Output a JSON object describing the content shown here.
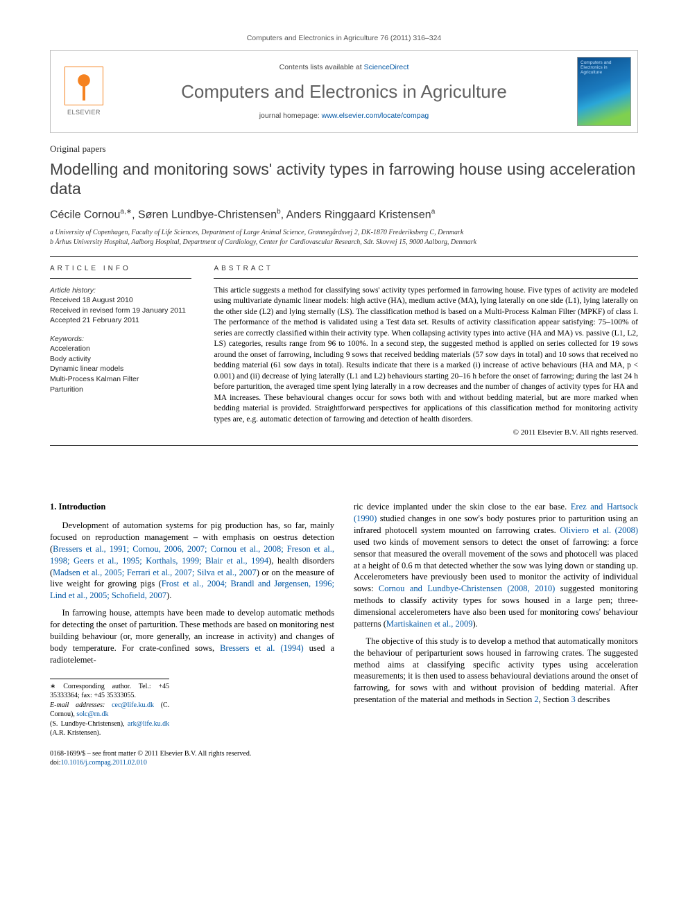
{
  "running_header": "Computers and Electronics in Agriculture 76 (2011) 316–324",
  "masthead": {
    "contents_prefix": "Contents lists available at ",
    "contents_link": "ScienceDirect",
    "journal_title": "Computers and Electronics in Agriculture",
    "homepage_prefix": "journal homepage: ",
    "homepage_url": "www.elsevier.com/locate/compag",
    "publisher_word": "ELSEVIER",
    "cover_label": "Computers and Electronics in Agriculture"
  },
  "article_type": "Original papers",
  "title": "Modelling and monitoring sows' activity types in farrowing house using acceleration data",
  "authors_html": "Cécile Cornou<sup>a,∗</sup>, Søren Lundbye-Christensen<sup>b</sup>, Anders Ringgaard Kristensen<sup>a</sup>",
  "affiliations": [
    "a University of Copenhagen, Faculty of Life Sciences, Department of Large Animal Science, Grønnegårdsvej 2, DK-1870 Frederiksberg C, Denmark",
    "b Århus University Hospital, Aalborg Hospital, Department of Cardiology, Center for Cardiovascular Research, Sdr. Skovvej 15, 9000 Aalborg, Denmark"
  ],
  "article_info": {
    "heading": "ARTICLE INFO",
    "history_label": "Article history:",
    "history": [
      "Received 18 August 2010",
      "Received in revised form 19 January 2011",
      "Accepted 21 February 2011"
    ],
    "keywords_label": "Keywords:",
    "keywords": [
      "Acceleration",
      "Body activity",
      "Dynamic linear models",
      "Multi-Process Kalman Filter",
      "Parturition"
    ]
  },
  "abstract": {
    "heading": "ABSTRACT",
    "body": "This article suggests a method for classifying sows' activity types performed in farrowing house. Five types of activity are modeled using multivariate dynamic linear models: high active (HA), medium active (MA), lying laterally on one side (L1), lying laterally on the other side (L2) and lying sternally (LS). The classification method is based on a Multi-Process Kalman Filter (MPKF) of class I. The performance of the method is validated using a Test data set. Results of activity classification appear satisfying: 75–100% of series are correctly classified within their activity type. When collapsing activity types into active (HA and MA) vs. passive (L1, L2, LS) categories, results range from 96 to 100%. In a second step, the suggested method is applied on series collected for 19 sows around the onset of farrowing, including 9 sows that received bedding materials (57 sow days in total) and 10 sows that received no bedding material (61 sow days in total). Results indicate that there is a marked (i) increase of active behaviours (HA and MA, p < 0.001) and (ii) decrease of lying laterally (L1 and L2) behaviours starting 20–16 h before the onset of farrowing; during the last 24 h before parturition, the averaged time spent lying laterally in a row decreases and the number of changes of activity types for HA and MA increases. These behavioural changes occur for sows both with and without bedding material, but are more marked when bedding material is provided. Straightforward perspectives for applications of this classification method for monitoring activity types are, e.g. automatic detection of farrowing and detection of health disorders.",
    "copyright": "© 2011 Elsevier B.V. All rights reserved."
  },
  "section1": {
    "heading": "1.  Introduction",
    "para1_pre": "Development of automation systems for pig production has, so far, mainly focused on reproduction management – with emphasis on oestrus detection (",
    "para1_cite1": "Bressers et al., 1991; Cornou, 2006, 2007; Cornou et al., 2008; Freson et al., 1998; Geers et al., 1995; Korthals, 1999; Blair et al., 1994",
    "para1_mid1": "), health disorders (",
    "para1_cite2": "Madsen et al., 2005; Ferrari et al., 2007; Silva et al., 2007",
    "para1_mid2": ") or on the measure of live weight for growing pigs (",
    "para1_cite3": "Frost et al., 2004; Brandl and Jørgensen, 1996; Lind et al., 2005; Schofield, 2007",
    "para1_post": ").",
    "para2_pre": "In farrowing house, attempts have been made to develop automatic methods for detecting the onset of parturition. These methods are based on monitoring nest building behaviour (or, more generally, an increase in activity) and changes of body temperature. For crate-confined sows, ",
    "para2_cite": "Bressers et al. (1994)",
    "para2_post": " used a radiotelemet-",
    "col2_pre": "ric device implanted under the skin close to the ear base. ",
    "col2_cite1": "Erez and Hartsock (1990)",
    "col2_mid1": " studied changes in one sow's body postures prior to parturition using an infrared photocell system mounted on farrowing crates. ",
    "col2_cite2": "Oliviero et al. (2008)",
    "col2_mid2": " used two kinds of movement sensors to detect the onset of farrowing: a force sensor that measured the overall movement of the sows and photocell was placed at a height of 0.6 m that detected whether the sow was lying down or standing up. Accelerometers have previously been used to monitor the activity of individual sows: ",
    "col2_cite3": "Cornou and Lundbye-Christensen (2008, 2010)",
    "col2_mid3": " suggested monitoring methods to classify activity types for sows housed in a large pen; three-dimensional accelerometers have also been used for monitoring cows' behaviour patterns (",
    "col2_cite4": "Martiskainen et al., 2009",
    "col2_mid4": ").",
    "col2_para2_pre": "The objective of this study is to develop a method that automatically monitors the behaviour of periparturient sows housed in farrowing crates. The suggested method aims at classifying specific activity types using acceleration measurements; it is then used to assess behavioural deviations around the onset of farrowing, for sows with and without provision of bedding material. After presentation of the material and methods in Section ",
    "col2_secref1": "2",
    "col2_para2_mid": ", Section ",
    "col2_secref2": "3",
    "col2_para2_post": " describes"
  },
  "footnotes": {
    "corr": "∗ Corresponding author. Tel.: +45 35333364; fax: +45 35333055.",
    "emails_label": "E-mail addresses: ",
    "email1": "cec@life.ku.dk",
    "email1_who": " (C. Cornou), ",
    "email2": "solc@rn.dk",
    "email2_who": "",
    "line3_pre": "(S. Lundbye-Christensen), ",
    "email3": "ark@life.ku.dk",
    "line3_post": " (A.R. Kristensen)."
  },
  "publine": {
    "left": "0168-1699/$ – see front matter © 2011 Elsevier B.V. All rights reserved.",
    "doi_label": "doi:",
    "doi": "10.1016/j.compag.2011.02.010"
  },
  "colors": {
    "link": "#0056a3",
    "elsevier_orange": "#f58220",
    "rule": "#000000",
    "grey_text": "#555555"
  }
}
